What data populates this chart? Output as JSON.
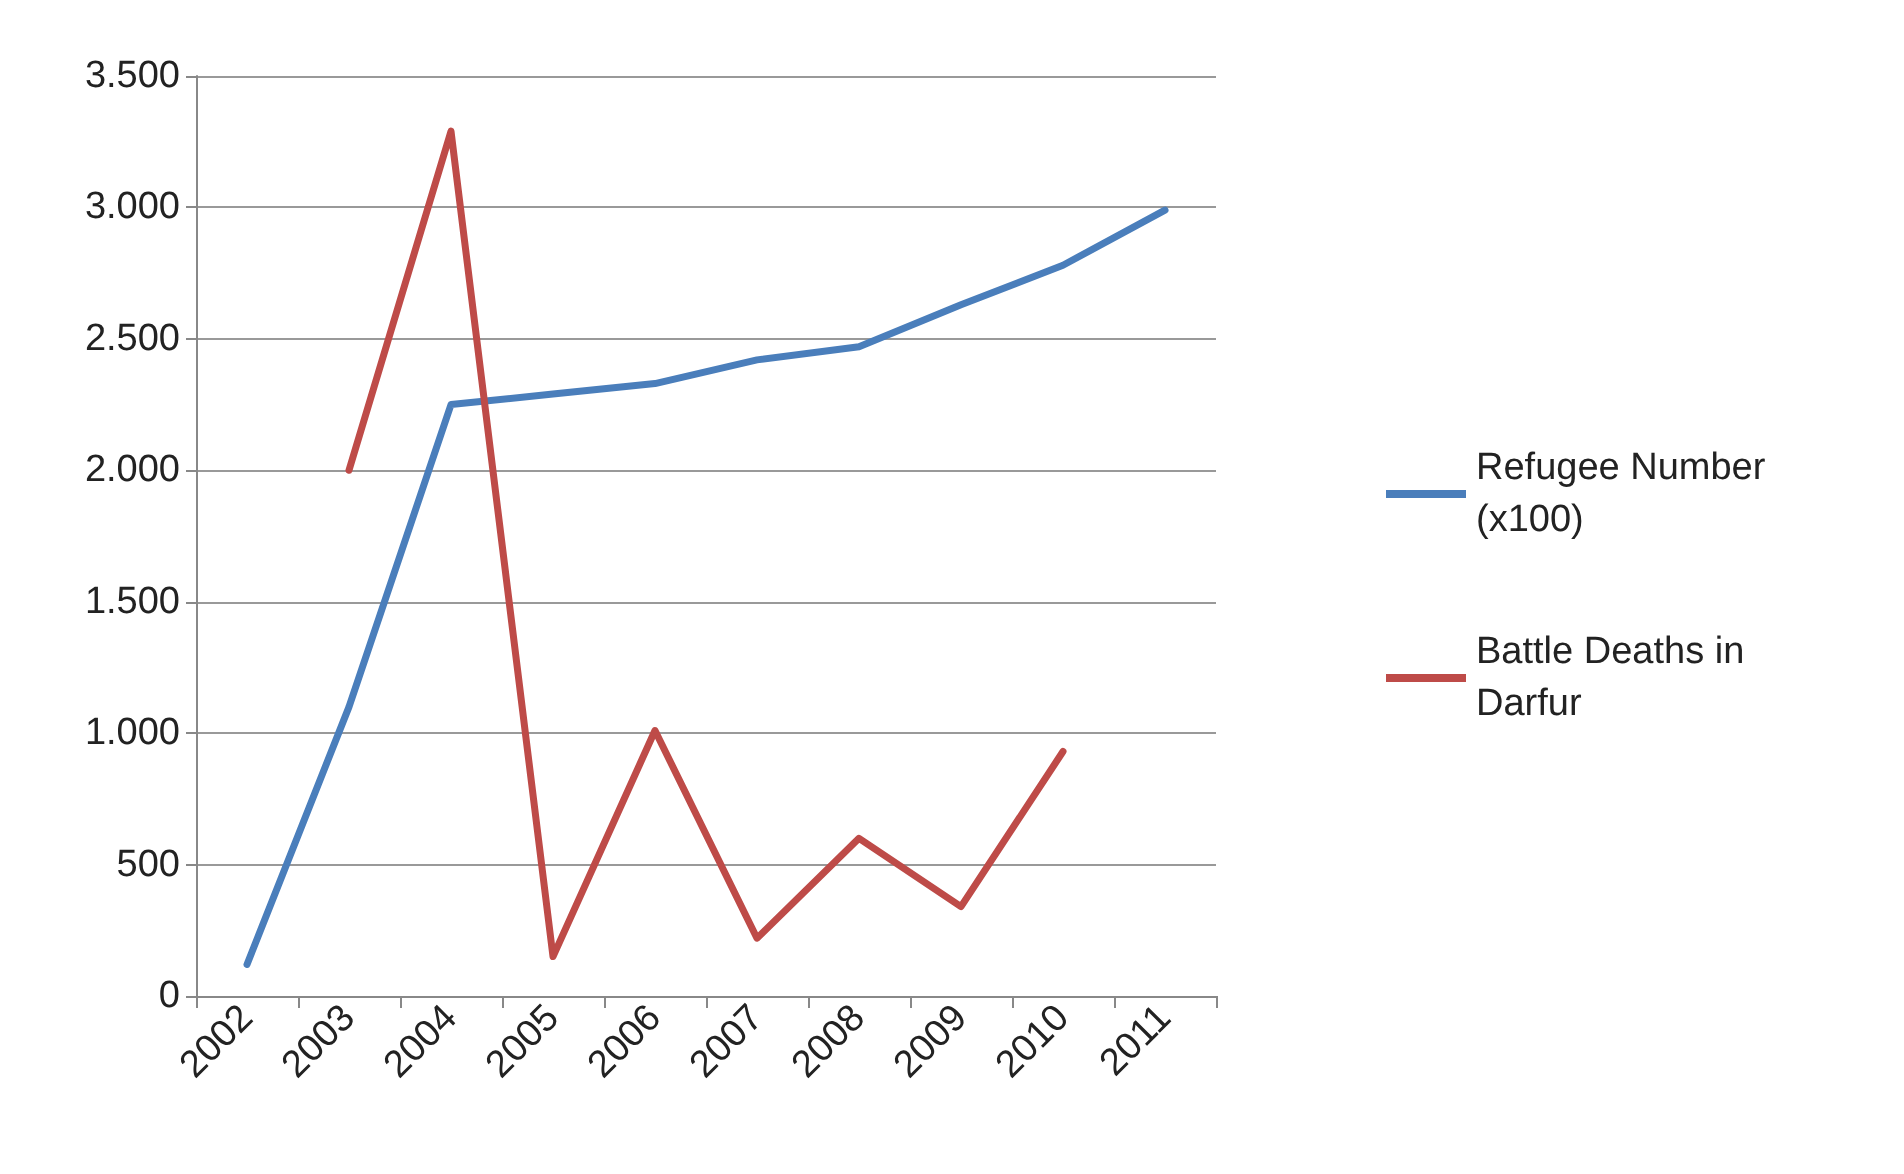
{
  "chart_data": {
    "type": "line",
    "categories": [
      "2002",
      "2003",
      "2004",
      "2005",
      "2006",
      "2007",
      "2008",
      "2009",
      "2010",
      "2011"
    ],
    "series": [
      {
        "name": "Refugee Number (x100)",
        "color": "#4a7ebb",
        "values": [
          120,
          1100,
          2250,
          2290,
          2330,
          2420,
          2470,
          2630,
          2780,
          2990
        ]
      },
      {
        "name": "Battle Deaths in Darfur",
        "color": "#be4b48",
        "values": [
          null,
          2000,
          3290,
          150,
          1010,
          220,
          600,
          340,
          930,
          null
        ]
      }
    ],
    "ylim": [
      0,
      3500
    ],
    "yticks": [
      {
        "value": 0,
        "label": "0"
      },
      {
        "value": 500,
        "label": "500"
      },
      {
        "value": 1000,
        "label": "1.000"
      },
      {
        "value": 1500,
        "label": "1.500"
      },
      {
        "value": 2000,
        "label": "2.000"
      },
      {
        "value": 2500,
        "label": "2.500"
      },
      {
        "value": 3000,
        "label": "3.000"
      },
      {
        "value": 3500,
        "label": "3.500"
      }
    ],
    "grid": "y",
    "legend": "right",
    "marker": "none",
    "line_style": "solid"
  }
}
